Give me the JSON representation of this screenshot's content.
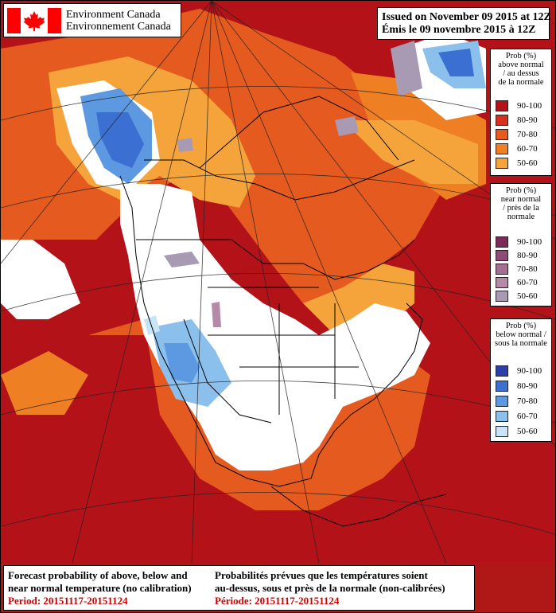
{
  "header": {
    "org_en": "Environment Canada",
    "org_fr": "Environnement Canada",
    "issued_en": "Issued on November 09 2015 at 12Z",
    "issued_fr": "Émis le 09 novembre 2015 à 12Z"
  },
  "legends": [
    {
      "id": "above",
      "title_lines": [
        "Prob (%)",
        "above normal",
        "/ au dessus",
        "de la normale"
      ],
      "items": [
        {
          "range": "90-100",
          "color": "#b41219"
        },
        {
          "range": "80-90",
          "color": "#d6311f"
        },
        {
          "range": "70-80",
          "color": "#e55b1f"
        },
        {
          "range": "60-70",
          "color": "#ee7f22"
        },
        {
          "range": "50-60",
          "color": "#f5a43c"
        }
      ]
    },
    {
      "id": "near",
      "title_lines": [
        "Prob (%)",
        "near normal",
        "/ près de la",
        "normale"
      ],
      "items": [
        {
          "range": "90-100",
          "color": "#7b2a59"
        },
        {
          "range": "80-90",
          "color": "#8f4a75"
        },
        {
          "range": "70-80",
          "color": "#a56e92"
        },
        {
          "range": "60-70",
          "color": "#b48aa6"
        },
        {
          "range": "50-60",
          "color": "#a79ab2"
        }
      ]
    },
    {
      "id": "below",
      "title_lines": [
        "Prob (%)",
        "below normal /",
        "sous la normale"
      ],
      "items": [
        {
          "range": "90-100",
          "color": "#2b3fa8"
        },
        {
          "range": "80-90",
          "color": "#3b6fd2"
        },
        {
          "range": "70-80",
          "color": "#5d99e0"
        },
        {
          "range": "60-70",
          "color": "#8cc0ec"
        },
        {
          "range": "50-60",
          "color": "#c7e5f7"
        }
      ]
    }
  ],
  "footer": {
    "left_line1": "Forecast probability of above, below and",
    "left_line2": "near normal temperature (no calibration)",
    "left_period": "Period: 20151117-20151124",
    "right_line1": "Probabilités prévues que les températures soient",
    "right_line2": "au-dessus, sous et près de la normale (non-calibrées)",
    "right_period": "Période: 20151117-20151124"
  },
  "colors": {
    "land_normal": "#ffffff",
    "boundary": "#000000",
    "period_text": "#d00000",
    "flag_red": "#ff0000"
  },
  "icons": [
    "canada-flag-icon"
  ]
}
